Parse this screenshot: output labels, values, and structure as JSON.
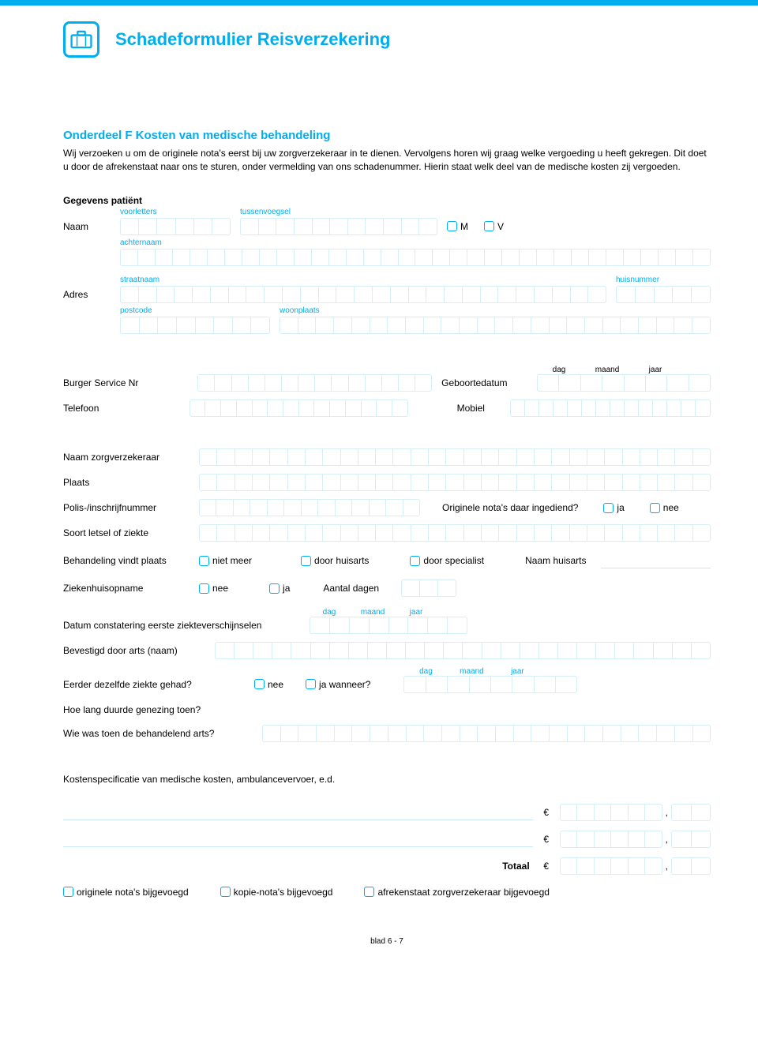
{
  "colors": {
    "accent": "#00aeef",
    "field_border": "#d4eefa",
    "underline": "#c8e7f6",
    "text": "#000000",
    "background": "#ffffff"
  },
  "typography": {
    "body_font": "Arial",
    "body_size_pt": 9,
    "title_size_pt": 17,
    "heading_size_pt": 11
  },
  "header": {
    "title": "Schadeformulier Reisverzekering"
  },
  "section": {
    "heading": "Onderdeel F Kosten van medische behandeling",
    "intro": "Wij verzoeken u om de originele nota's eerst bij uw zorgverzekeraar in te dienen. Vervolgens horen wij graag welke vergoeding u heeft gekregen. Dit doet u door de afrekenstaat naar ons te sturen, onder vermelding van ons schadenummer. Hierin staat welk deel van de medische kosten zij vergoeden."
  },
  "patient": {
    "heading": "Gegevens patiënt",
    "labels": {
      "voorletters": "voorletters",
      "tussenvoegsel": "tussenvoegsel",
      "achternaam": "achternaam",
      "straatnaam": "straatnaam",
      "huisnummer": "huisnummer",
      "postcode": "postcode",
      "woonplaats": "woonplaats",
      "naam": "Naam",
      "adres": "Adres",
      "m": "M",
      "v": "V"
    }
  },
  "fields": {
    "bsn": "Burger Service Nr",
    "geboortedatum": "Geboortedatum",
    "telefoon": "Telefoon",
    "mobiel": "Mobiel",
    "zorgverzekeraar": "Naam zorgverzekeraar",
    "plaats": "Plaats",
    "polis": "Polis-/inschrijfnummer",
    "originele_ingediend": "Originele nota's daar ingediend?",
    "ja": "ja",
    "nee": "nee",
    "soort_letsel": "Soort letsel of ziekte",
    "behandeling": "Behandeling vindt plaats",
    "niet_meer": "niet meer",
    "door_huisarts": "door huisarts",
    "door_specialist": "door specialist",
    "naam_huisarts": "Naam huisarts",
    "ziekenhuisopname": "Ziekenhuisopname",
    "aantal_dagen": "Aantal dagen",
    "datum_constatering": "Datum constatering eerste ziekteverschijnselen",
    "bevestigd_arts": "Bevestigd door arts (naam)",
    "eerder_ziekte": "Eerder dezelfde ziekte gehad?",
    "ja_wanneer": "ja wanneer?",
    "hoe_lang": "Hoe lang duurde genezing toen?",
    "wie_arts": "Wie was toen de behandelend arts?",
    "kostenspec": "Kostenspecificatie van medische kosten, ambulancevervoer, e.d.",
    "totaal": "Totaal",
    "euro": "€",
    "originele_bijgevoegd": "originele nota's bijgevoegd",
    "kopie_bijgevoegd": "kopie-nota's bijgevoegd",
    "afrekenstaat_bijgevoegd": "afrekenstaat zorgverzekeraar bijgevoegd",
    "dag": "dag",
    "maand": "maand",
    "jaar": "jaar"
  },
  "box_counts": {
    "voorletters": 6,
    "tussenvoegsel": 11,
    "achternaam": 34,
    "straatnaam": 27,
    "huisnummer": 5,
    "postcode": 8,
    "woonplaats": 24,
    "bsn": 14,
    "date": 8,
    "telefoon": 14,
    "mobiel": 14,
    "zorgverzekeraar": 29,
    "plaats": 29,
    "polis": 13,
    "soort_letsel": 29,
    "aantal_dagen": 3,
    "date2": 8,
    "bevestigd": 26,
    "wie_arts": 25,
    "amount_int": 6,
    "amount_dec": 2
  },
  "footer": {
    "page": "blad 6 - 7"
  }
}
